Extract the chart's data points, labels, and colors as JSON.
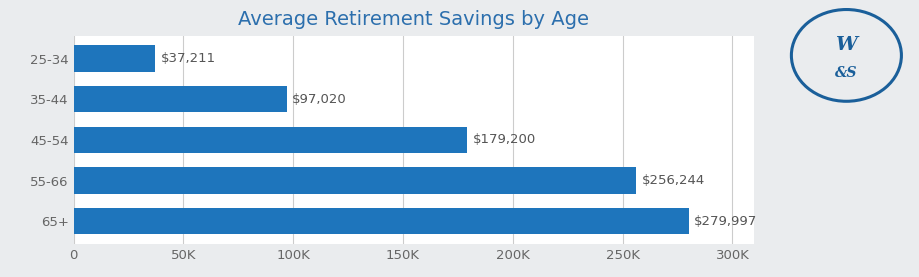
{
  "title": "Average Retirement Savings by Age",
  "categories": [
    "25-34",
    "35-44",
    "45-54",
    "55-66",
    "65+"
  ],
  "values": [
    37211,
    97020,
    179200,
    256244,
    279997
  ],
  "labels": [
    "$37,211",
    "$97,020",
    "$179,200",
    "$256,244",
    "$279,997"
  ],
  "bar_color": "#1e75bc",
  "background_color": "#eaecee",
  "plot_bg_color": "#ffffff",
  "title_color": "#2c6fad",
  "label_color": "#555555",
  "tick_color": "#666666",
  "grid_color": "#cccccc",
  "xlim": [
    0,
    310000
  ],
  "xticks": [
    0,
    50000,
    100000,
    150000,
    200000,
    250000,
    300000
  ],
  "xticklabels": [
    "0",
    "50K",
    "100K",
    "150K",
    "200K",
    "250K",
    "300K"
  ],
  "title_fontsize": 14,
  "label_fontsize": 9.5,
  "tick_fontsize": 9.5,
  "bar_height": 0.65,
  "figsize": [
    9.2,
    2.77
  ],
  "dpi": 100,
  "logo_color": "#1a5f9a"
}
